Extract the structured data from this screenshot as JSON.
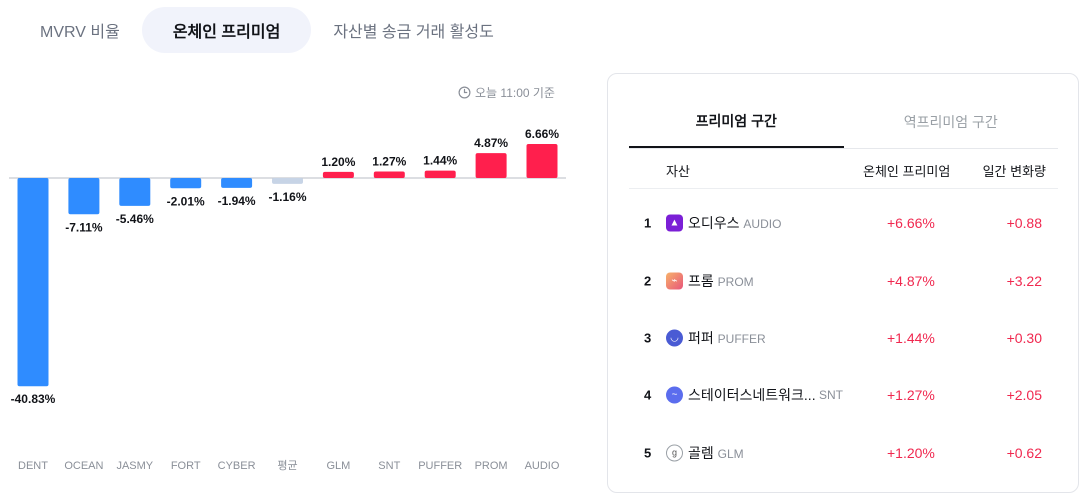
{
  "tabs": [
    {
      "label": "MVRV 비율"
    },
    {
      "label": "온체인 프리미엄"
    },
    {
      "label": "자산별 송금 거래 활성도"
    }
  ],
  "timestamp": "오늘 11:00 기준",
  "colors": {
    "positive": "#ff1f4d",
    "negative": "#2f8cff",
    "average": "#c7d4e6",
    "red_text": "#f0284f"
  },
  "chart_data": {
    "type": "bar",
    "categories": [
      "DENT",
      "OCEAN",
      "JASMY",
      "FORT",
      "CYBER",
      "평균",
      "GLM",
      "SNT",
      "PUFFER",
      "PROM",
      "AUDIO"
    ],
    "values": [
      -40.83,
      -7.11,
      -5.46,
      -2.01,
      -1.94,
      -1.16,
      1.2,
      1.27,
      1.44,
      4.87,
      6.66
    ],
    "labels": [
      "-40.83%",
      "-7.11%",
      "-5.46%",
      "-2.01%",
      "-1.94%",
      "-1.16%",
      "1.20%",
      "1.27%",
      "1.44%",
      "4.87%",
      "6.66%"
    ],
    "average_category": "평균",
    "title": "",
    "xlabel": "",
    "ylabel": "",
    "grid": false
  },
  "panel": {
    "tabs": [
      {
        "label": "프리미엄 구간"
      },
      {
        "label": "역프리미엄 구간"
      }
    ],
    "headers": {
      "asset": "자산",
      "premium": "온체인 프리미엄",
      "change": "일간 변화량"
    },
    "rows": [
      {
        "rank": "1",
        "name": "오디우스",
        "symbol": "AUDIO",
        "premium": "+6.66%",
        "change": "+0.88",
        "icon": "audio-icon",
        "icon_color": "#7b1fd6"
      },
      {
        "rank": "2",
        "name": "프롬",
        "symbol": "PROM",
        "premium": "+4.87%",
        "change": "+3.22",
        "icon": "prom-icon",
        "icon_color": "#f08a6a"
      },
      {
        "rank": "3",
        "name": "퍼퍼",
        "symbol": "PUFFER",
        "premium": "+1.44%",
        "change": "+0.30",
        "icon": "puffer-icon",
        "icon_color": "#4a5bd4"
      },
      {
        "rank": "4",
        "name": "스테이터스네트워크...",
        "symbol": "SNT",
        "premium": "+1.27%",
        "change": "+2.05",
        "icon": "snt-icon",
        "icon_color": "#5b6dee"
      },
      {
        "rank": "5",
        "name": "골렘",
        "symbol": "GLM",
        "premium": "+1.20%",
        "change": "+0.62",
        "icon": "glm-icon",
        "icon_color": "#ffffff"
      }
    ]
  }
}
